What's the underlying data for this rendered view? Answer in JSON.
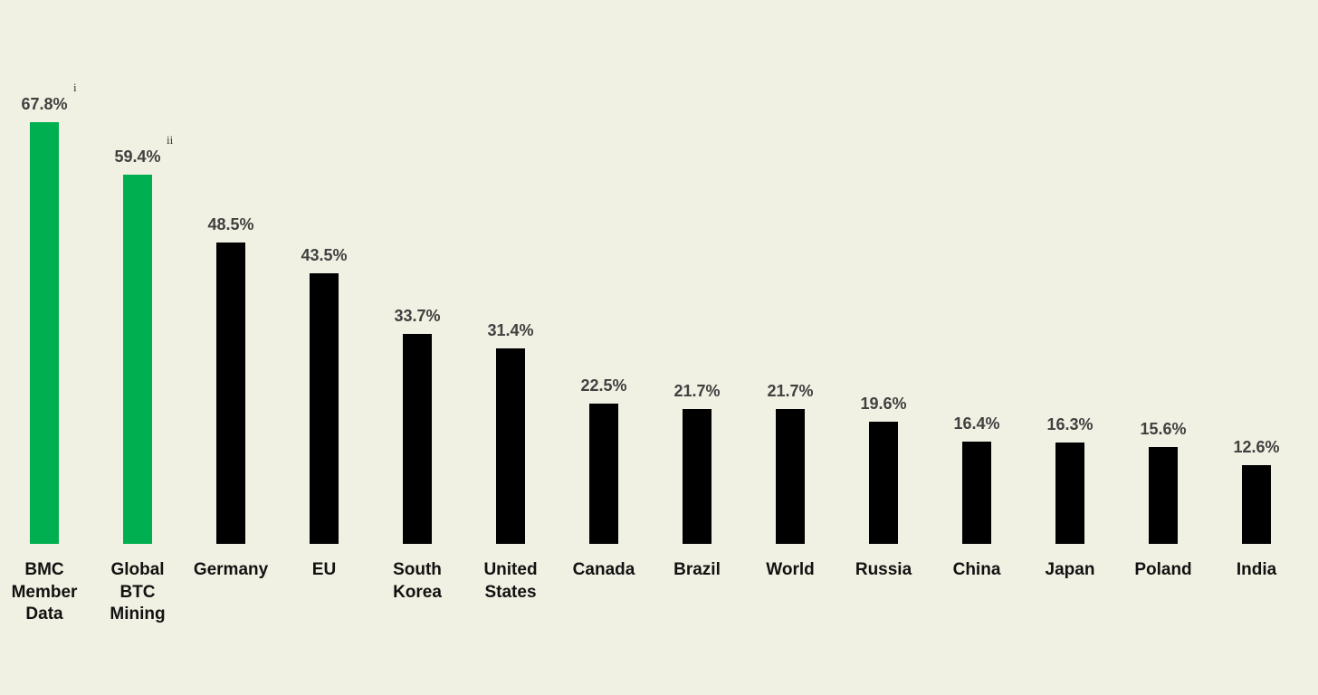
{
  "chart_data": {
    "type": "bar",
    "categories": [
      "BMC Member Data",
      "Global BTC Mining",
      "Germany",
      "EU",
      "South Korea",
      "United States",
      "Canada",
      "Brazil",
      "World",
      "Russia",
      "China",
      "Japan",
      "Poland",
      "India"
    ],
    "values": [
      67.8,
      59.4,
      48.5,
      43.5,
      33.7,
      31.4,
      22.5,
      21.7,
      21.7,
      19.6,
      16.4,
      16.3,
      15.6,
      12.6
    ],
    "value_labels": [
      "67.8%",
      "59.4%",
      "48.5%",
      "43.5%",
      "33.7%",
      "31.4%",
      "22.5%",
      "21.7%",
      "21.7%",
      "19.6%",
      "16.4%",
      "16.3%",
      "15.6%",
      "12.6%"
    ],
    "value_superscripts": [
      "i",
      "ii",
      null,
      null,
      null,
      null,
      null,
      null,
      null,
      null,
      null,
      null,
      null,
      null
    ],
    "colors": [
      "#00b050",
      "#00b050",
      "#000000",
      "#000000",
      "#000000",
      "#000000",
      "#000000",
      "#000000",
      "#000000",
      "#000000",
      "#000000",
      "#000000",
      "#000000",
      "#000000"
    ]
  }
}
